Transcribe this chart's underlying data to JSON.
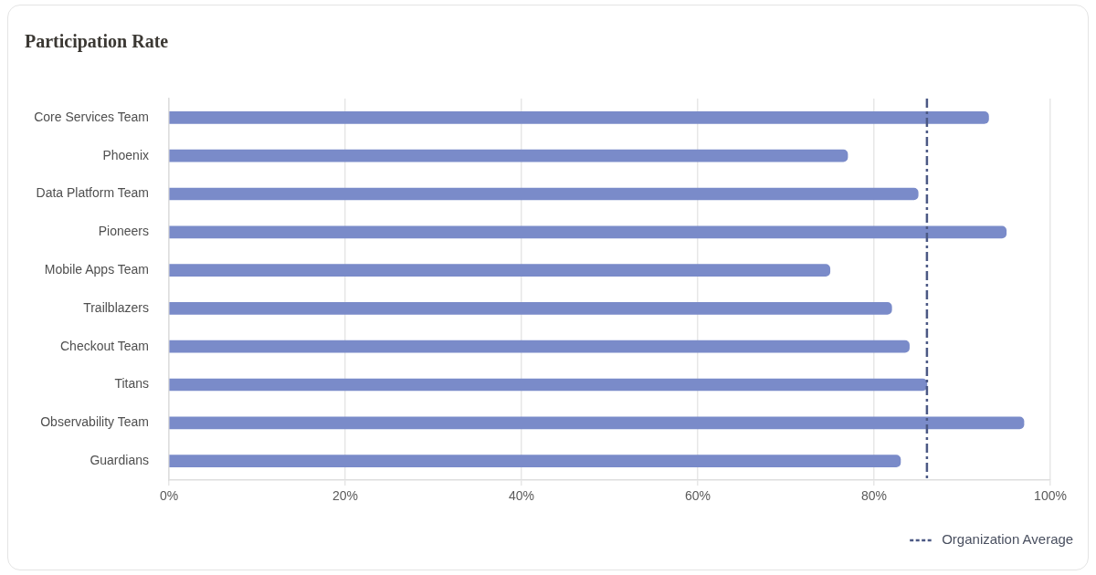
{
  "chart_data": {
    "type": "bar",
    "title": "Participation Rate",
    "orientation": "horizontal",
    "categories": [
      "Core Services Team",
      "Phoenix",
      "Data Platform Team",
      "Pioneers",
      "Mobile Apps Team",
      "Trailblazers",
      "Checkout Team",
      "Titans",
      "Observability Team",
      "Guardians"
    ],
    "values": [
      93,
      77,
      85,
      95,
      75,
      82,
      84,
      86,
      97,
      83
    ],
    "color": "#7a8bc9",
    "xlim": [
      0,
      100
    ],
    "xticks": [
      {
        "value": 0,
        "label": "0%"
      },
      {
        "value": 20,
        "label": "20%"
      },
      {
        "value": 40,
        "label": "40%"
      },
      {
        "value": 60,
        "label": "60%"
      },
      {
        "value": 80,
        "label": "80%"
      },
      {
        "value": 100,
        "label": "100%"
      }
    ],
    "grid": "x",
    "ref_lines": [
      {
        "axis": "x",
        "value": 86,
        "label": "Organization Average",
        "color": "#4b5884",
        "line_style": "dashed"
      }
    ],
    "legend": "bottom right"
  }
}
